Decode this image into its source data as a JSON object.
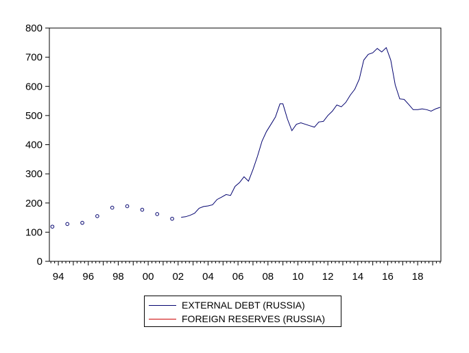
{
  "chart_data": {
    "type": "line",
    "title": "",
    "xlabel": "",
    "ylabel": "",
    "xlim": [
      1993.4,
      2019.55
    ],
    "ylim": [
      0,
      800
    ],
    "y_ticks": [
      0,
      100,
      200,
      300,
      400,
      500,
      600,
      700,
      800
    ],
    "x_ticks": [
      1994,
      1996,
      1998,
      2000,
      2002,
      2004,
      2006,
      2008,
      2010,
      2012,
      2014,
      2016,
      2018
    ],
    "x_tick_labels": [
      "94",
      "96",
      "98",
      "00",
      "02",
      "04",
      "06",
      "08",
      "10",
      "12",
      "14",
      "16",
      "18"
    ],
    "grid": false,
    "legend_position": "bottom",
    "series": [
      {
        "name": "EXTERNAL DEBT (RUSSIA)",
        "color": "#00006e",
        "markers": [
          {
            "x": 1993.6,
            "y": 119
          },
          {
            "x": 1994.6,
            "y": 128
          },
          {
            "x": 1995.6,
            "y": 132
          },
          {
            "x": 1996.6,
            "y": 155
          },
          {
            "x": 1997.6,
            "y": 184
          },
          {
            "x": 1998.6,
            "y": 189
          },
          {
            "x": 1999.6,
            "y": 177
          },
          {
            "x": 2000.6,
            "y": 162
          },
          {
            "x": 2001.6,
            "y": 146
          }
        ],
        "points": [
          {
            "x": 2002.2,
            "y": 151
          },
          {
            "x": 2002.5,
            "y": 153
          },
          {
            "x": 2002.8,
            "y": 158
          },
          {
            "x": 2003.1,
            "y": 165
          },
          {
            "x": 2003.4,
            "y": 182
          },
          {
            "x": 2003.7,
            "y": 188
          },
          {
            "x": 2004.0,
            "y": 190
          },
          {
            "x": 2004.3,
            "y": 194
          },
          {
            "x": 2004.6,
            "y": 212
          },
          {
            "x": 2004.9,
            "y": 220
          },
          {
            "x": 2005.2,
            "y": 229
          },
          {
            "x": 2005.5,
            "y": 226
          },
          {
            "x": 2005.8,
            "y": 257
          },
          {
            "x": 2006.1,
            "y": 270
          },
          {
            "x": 2006.4,
            "y": 290
          },
          {
            "x": 2006.7,
            "y": 275
          },
          {
            "x": 2007.0,
            "y": 315
          },
          {
            "x": 2007.3,
            "y": 360
          },
          {
            "x": 2007.6,
            "y": 412
          },
          {
            "x": 2007.9,
            "y": 445
          },
          {
            "x": 2008.2,
            "y": 470
          },
          {
            "x": 2008.5,
            "y": 495
          },
          {
            "x": 2008.8,
            "y": 540
          },
          {
            "x": 2009.0,
            "y": 540
          },
          {
            "x": 2009.3,
            "y": 488
          },
          {
            "x": 2009.6,
            "y": 448
          },
          {
            "x": 2009.9,
            "y": 470
          },
          {
            "x": 2010.2,
            "y": 475
          },
          {
            "x": 2010.5,
            "y": 470
          },
          {
            "x": 2010.8,
            "y": 465
          },
          {
            "x": 2011.1,
            "y": 460
          },
          {
            "x": 2011.4,
            "y": 478
          },
          {
            "x": 2011.7,
            "y": 480
          },
          {
            "x": 2012.0,
            "y": 500
          },
          {
            "x": 2012.3,
            "y": 515
          },
          {
            "x": 2012.6,
            "y": 536
          },
          {
            "x": 2012.9,
            "y": 530
          },
          {
            "x": 2013.2,
            "y": 545
          },
          {
            "x": 2013.5,
            "y": 570
          },
          {
            "x": 2013.8,
            "y": 590
          },
          {
            "x": 2014.1,
            "y": 625
          },
          {
            "x": 2014.4,
            "y": 690
          },
          {
            "x": 2014.7,
            "y": 710
          },
          {
            "x": 2015.0,
            "y": 715
          },
          {
            "x": 2015.3,
            "y": 730
          },
          {
            "x": 2015.6,
            "y": 718
          },
          {
            "x": 2015.9,
            "y": 733
          },
          {
            "x": 2016.2,
            "y": 690
          },
          {
            "x": 2016.5,
            "y": 605
          },
          {
            "x": 2016.8,
            "y": 557
          },
          {
            "x": 2017.1,
            "y": 555
          },
          {
            "x": 2017.4,
            "y": 538
          },
          {
            "x": 2017.7,
            "y": 520
          },
          {
            "x": 2018.0,
            "y": 520
          },
          {
            "x": 2018.3,
            "y": 523
          },
          {
            "x": 2018.6,
            "y": 520
          },
          {
            "x": 2018.9,
            "y": 515
          },
          {
            "x": 2019.2,
            "y": 523
          },
          {
            "x": 2019.5,
            "y": 528
          }
        ]
      },
      {
        "name": "FOREIGN RESERVES (RUSSIA)",
        "color": "#cc0000",
        "points": []
      }
    ]
  }
}
